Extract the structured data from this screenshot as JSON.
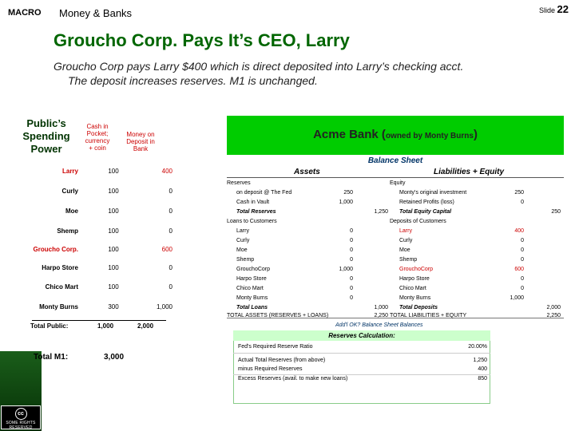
{
  "header": {
    "macro": "MACRO",
    "course": "Money & Banks",
    "slide_label": "Slide",
    "slide_number": "22"
  },
  "title": "Groucho Corp. Pays It’s CEO, Larry",
  "subtitle": [
    "Groucho Corp pays Larry $400 which is direct deposited into Larry’s checking acct.",
    "The deposit increases reserves. M1 is unchanged."
  ],
  "publics": {
    "heading": [
      "Public’s",
      "Spending",
      "Power"
    ],
    "col1": [
      "Cash in",
      "Pocket;",
      "currency",
      "+ coin"
    ],
    "col2": [
      "Money on",
      "Deposit in",
      "Bank"
    ],
    "rows": [
      {
        "name": "Larry",
        "cash": "100",
        "deposit": "400"
      },
      {
        "name": "Curly",
        "cash": "100",
        "deposit": "0"
      },
      {
        "name": "Moe",
        "cash": "100",
        "deposit": "0"
      },
      {
        "name": "Shemp",
        "cash": "100",
        "deposit": "0"
      },
      {
        "name": "Groucho Corp.",
        "cash": "100",
        "deposit": "600"
      },
      {
        "name": "Harpo Store",
        "cash": "100",
        "deposit": "0"
      },
      {
        "name": "Chico Mart",
        "cash": "100",
        "deposit": "0"
      },
      {
        "name": "Monty Burns",
        "cash": "300",
        "deposit": "1,000"
      }
    ],
    "total_label": "Total Public:",
    "total_cash": "1,000",
    "total_deposit": "2,000",
    "m1_label": "Total M1:",
    "m1_value": "3,000"
  },
  "bank": {
    "name": "Acme Bank (",
    "owner": "owned by Monty Burns",
    "close": ")",
    "sheet": "Balance Sheet",
    "assets": "Assets",
    "liabilities": "Liabilities + Equity",
    "left": [
      {
        "label": "Reserves",
        "v": "",
        "t": "",
        "style": ""
      },
      {
        "label": "on deposit @ The Fed",
        "v": "250",
        "t": "",
        "style": "indent"
      },
      {
        "label": "Cash in Vault",
        "v": "1,000",
        "t": "",
        "style": "indent"
      },
      {
        "label": "Total Reserves",
        "v": "",
        "t": "1,250",
        "style": "total"
      },
      {
        "label": "Loans to Customers",
        "v": "",
        "t": "",
        "style": ""
      },
      {
        "label": "Larry",
        "v": "0",
        "t": "",
        "style": "indent"
      },
      {
        "label": "Curly",
        "v": "0",
        "t": "",
        "style": "indent"
      },
      {
        "label": "Moe",
        "v": "0",
        "t": "",
        "style": "indent"
      },
      {
        "label": "Shemp",
        "v": "0",
        "t": "",
        "style": "indent"
      },
      {
        "label": "GrouchoCorp",
        "v": "1,000",
        "t": "",
        "style": "indent"
      },
      {
        "label": "Harpo Store",
        "v": "0",
        "t": "",
        "style": "indent"
      },
      {
        "label": "Chico Mart",
        "v": "0",
        "t": "",
        "style": "indent"
      },
      {
        "label": "Monty Burns",
        "v": "0",
        "t": "",
        "style": "indent"
      },
      {
        "label": "Total Loans",
        "v": "",
        "t": "1,000",
        "style": "total"
      }
    ],
    "right": [
      {
        "label": "Equity",
        "v": "",
        "t": "",
        "style": ""
      },
      {
        "label": "Monty's original investment",
        "v": "250",
        "t": "",
        "style": "indent"
      },
      {
        "label": "Retained Profits (loss)",
        "v": "0",
        "t": "",
        "style": "indent"
      },
      {
        "label": "Total Equity Capital",
        "v": "",
        "t": "250",
        "style": "total"
      },
      {
        "label": "Deposits of Customers",
        "v": "",
        "t": "",
        "style": ""
      },
      {
        "label": "Larry",
        "v": "400",
        "t": "",
        "style": "indent red"
      },
      {
        "label": "Curly",
        "v": "0",
        "t": "",
        "style": "indent"
      },
      {
        "label": "Moe",
        "v": "0",
        "t": "",
        "style": "indent"
      },
      {
        "label": "Shemp",
        "v": "0",
        "t": "",
        "style": "indent"
      },
      {
        "label": "GrouchoCorp",
        "v": "600",
        "t": "",
        "style": "indent red"
      },
      {
        "label": "Harpo Store",
        "v": "0",
        "t": "",
        "style": "indent"
      },
      {
        "label": "Chico Mart",
        "v": "0",
        "t": "",
        "style": "indent"
      },
      {
        "label": "Monty Burns",
        "v": "1,000",
        "t": "",
        "style": "indent"
      },
      {
        "label": "Total Deposits",
        "v": "",
        "t": "2,000",
        "style": "total"
      }
    ],
    "total_assets_label": "TOTAL ASSETS (RESERVES + LOANS)",
    "total_assets": "2,250",
    "total_liab_label": "TOTAL LIABILITIES + EQUITY",
    "total_liab": "2,250",
    "ok_note": "Add'l OK? Balance Sheet Balances"
  },
  "reserves": {
    "heading": "Reserves Calculation:",
    "rows": [
      {
        "label": "Fed's Required Reserve Ratio",
        "v": "20.00%"
      },
      {
        "label": "Actual Total Reserves (from above)",
        "v": "1,250"
      },
      {
        "label": "minus Required Reserves",
        "v": "400"
      },
      {
        "label": "Excess Reserves (avail. to make new loans)",
        "v": "850"
      }
    ]
  },
  "license": {
    "text": "SOME RIGHTS RESERVED",
    "symbol": "cc"
  }
}
